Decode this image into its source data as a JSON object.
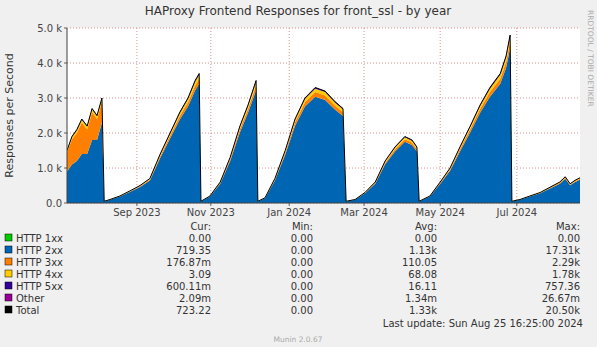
{
  "chart_data": {
    "type": "area",
    "title": "HAProxy Frontend Responses for front_ssl - by year",
    "y_label": "Responses per Second",
    "stacked": true,
    "grid": true,
    "legend": "bottom",
    "xlim": [
      2023.515,
      2024.66
    ],
    "xticks": [
      {
        "value": 2023.671,
        "label": "Sep 2023"
      },
      {
        "value": 2023.836,
        "label": "Nov 2023"
      },
      {
        "value": 2024.011,
        "label": "Jan 2024"
      },
      {
        "value": 2024.178,
        "label": "Mar 2024"
      },
      {
        "value": 2024.348,
        "label": "May 2024"
      },
      {
        "value": 2024.519,
        "label": "Jul 2024"
      }
    ],
    "ylim": [
      0,
      5000
    ],
    "yticks": [
      {
        "value": 0,
        "label": "0.0"
      },
      {
        "value": 1000,
        "label": "1.0 k"
      },
      {
        "value": 2000,
        "label": "2.0 k"
      },
      {
        "value": 3000,
        "label": "3.0 k"
      },
      {
        "value": 4000,
        "label": "4.0 k"
      },
      {
        "value": 5000,
        "label": "5.0 k"
      }
    ],
    "x": [
      2023.515,
      2023.526,
      2023.537,
      2023.548,
      2023.56,
      2023.571,
      2023.582,
      2023.593,
      2023.598,
      2023.611,
      2023.633,
      2023.656,
      2023.678,
      2023.7,
      2023.723,
      2023.745,
      2023.767,
      2023.785,
      2023.801,
      2023.81,
      2023.814,
      2023.834,
      2023.857,
      2023.879,
      2023.901,
      2023.919,
      2023.937,
      2023.941,
      2023.957,
      2023.979,
      2024.002,
      2024.024,
      2024.046,
      2024.069,
      2024.091,
      2024.113,
      2024.131,
      2024.138,
      2024.158,
      2024.18,
      2024.203,
      2024.225,
      2024.247,
      2024.269,
      2024.285,
      2024.296,
      2024.301,
      2024.325,
      2024.348,
      2024.37,
      2024.392,
      2024.415,
      2024.437,
      2024.459,
      2024.482,
      2024.495,
      2024.504,
      2024.508,
      2024.526,
      2024.548,
      2024.571,
      2024.593,
      2024.615,
      2024.627,
      2024.638,
      2024.649,
      2024.66
    ],
    "stat_headers": [
      "Cur:",
      "Min:",
      "Avg:",
      "Max:"
    ],
    "series": [
      {
        "name": "HTTP 1xx",
        "color": "#00cc00",
        "stats": [
          "0.00",
          "0.00",
          "0.00",
          "0.00"
        ],
        "values": [
          0,
          0,
          0,
          0,
          0,
          0,
          0,
          0,
          0,
          0,
          0,
          0,
          0,
          0,
          0,
          0,
          0,
          0,
          0,
          0,
          0,
          0,
          0,
          0,
          0,
          0,
          0,
          0,
          0,
          0,
          0,
          0,
          0,
          0,
          0,
          0,
          0,
          0,
          0,
          0,
          0,
          0,
          0,
          0,
          0,
          0,
          0,
          0,
          0,
          0,
          0,
          0,
          0,
          0,
          0,
          0,
          0,
          0,
          0,
          0,
          0,
          0,
          0,
          0,
          0,
          0,
          0
        ]
      },
      {
        "name": "HTTP 2xx",
        "color": "#0066b3",
        "stats": [
          "719.35",
          "0.00",
          "1.13k",
          "17.31k"
        ],
        "values": [
          900,
          1100,
          1200,
          1400,
          1400,
          1800,
          1800,
          2300,
          40,
          92,
          184,
          322,
          460,
          644,
          1288,
          1840,
          2392,
          2760,
          3220,
          3404,
          40,
          184,
          552,
          1196,
          2024,
          2576,
          3220,
          40,
          138,
          644,
          1380,
          2208,
          2760,
          3036,
          2944,
          2668,
          2484,
          40,
          92,
          276,
          552,
          1104,
          1472,
          1748,
          1656,
          1472,
          40,
          184,
          552,
          920,
          1472,
          2024,
          2576,
          3036,
          3404,
          3864,
          4416,
          40,
          92,
          184,
          276,
          414,
          552,
          690,
          506,
          598,
          662
        ]
      },
      {
        "name": "HTTP 3xx",
        "color": "#ff8000",
        "stats": [
          "176.87m",
          "0.00",
          "110.05",
          "2.29k"
        ],
        "values": [
          550,
          720,
          800,
          900,
          700,
          800,
          600,
          600,
          5,
          4,
          8,
          14,
          20,
          28,
          56,
          80,
          104,
          120,
          140,
          148,
          5,
          8,
          24,
          52,
          88,
          112,
          140,
          5,
          6,
          28,
          60,
          96,
          120,
          132,
          128,
          116,
          108,
          5,
          4,
          12,
          24,
          48,
          64,
          76,
          72,
          64,
          5,
          8,
          24,
          40,
          64,
          88,
          112,
          132,
          148,
          168,
          192,
          5,
          4,
          8,
          12,
          18,
          24,
          30,
          22,
          26,
          29
        ]
      },
      {
        "name": "HTTP 4xx",
        "color": "#ffcc00",
        "stats": [
          "3.09",
          "0.00",
          "68.08",
          "1.78k"
        ],
        "values": [
          40,
          60,
          70,
          80,
          80,
          80,
          80,
          80,
          4,
          3,
          6,
          11,
          15,
          21,
          42,
          60,
          78,
          90,
          105,
          111,
          4,
          6,
          18,
          39,
          66,
          84,
          105,
          4,
          5,
          21,
          45,
          72,
          90,
          99,
          96,
          87,
          81,
          4,
          3,
          9,
          18,
          36,
          48,
          57,
          54,
          48,
          4,
          6,
          18,
          30,
          48,
          66,
          84,
          99,
          111,
          126,
          144,
          4,
          3,
          6,
          9,
          14,
          18,
          23,
          17,
          20,
          22
        ]
      },
      {
        "name": "HTTP 5xx",
        "color": "#330099",
        "stats": [
          "600.11m",
          "0.00",
          "16.11",
          "757.36"
        ],
        "values": [
          10,
          20,
          30,
          20,
          20,
          20,
          20,
          20,
          1,
          1,
          2,
          3,
          5,
          7,
          14,
          20,
          26,
          30,
          35,
          37,
          1,
          2,
          6,
          13,
          22,
          28,
          35,
          1,
          1,
          7,
          15,
          24,
          30,
          33,
          32,
          29,
          27,
          1,
          1,
          3,
          6,
          12,
          16,
          19,
          18,
          16,
          1,
          2,
          6,
          10,
          16,
          22,
          28,
          33,
          37,
          42,
          48,
          1,
          1,
          2,
          3,
          4,
          6,
          7,
          5,
          6,
          7
        ]
      },
      {
        "name": "Other",
        "color": "#990099",
        "stats": [
          "2.09m",
          "0.00",
          "1.34m",
          "26.67m"
        ],
        "values": [
          0,
          0,
          0,
          0,
          0,
          0,
          0,
          0,
          0,
          0,
          0,
          0,
          0,
          0,
          0,
          0,
          0,
          0,
          0,
          0,
          0,
          0,
          0,
          0,
          0,
          0,
          0,
          0,
          0,
          0,
          0,
          0,
          0,
          0,
          0,
          0,
          0,
          0,
          0,
          0,
          0,
          0,
          0,
          0,
          0,
          0,
          0,
          0,
          0,
          0,
          0,
          0,
          0,
          0,
          0,
          0,
          0,
          0,
          0,
          0,
          0,
          0,
          0,
          0,
          0,
          0,
          0
        ]
      },
      {
        "name": "Total",
        "color": "#000000",
        "type": "line",
        "stats": [
          "723.22",
          "0.00",
          "1.33k",
          "20.50k"
        ],
        "values": [
          1500,
          1900,
          2100,
          2400,
          2200,
          2700,
          2500,
          3000,
          50,
          100,
          200,
          350,
          500,
          700,
          1400,
          2000,
          2600,
          3000,
          3500,
          3700,
          50,
          200,
          600,
          1300,
          2200,
          2800,
          3500,
          50,
          150,
          700,
          1500,
          2400,
          3000,
          3300,
          3200,
          2900,
          2700,
          50,
          100,
          300,
          600,
          1200,
          1600,
          1900,
          1800,
          1600,
          50,
          200,
          600,
          1000,
          1600,
          2200,
          2800,
          3300,
          3700,
          4200,
          4800,
          50,
          100,
          200,
          300,
          450,
          600,
          750,
          550,
          650,
          720
        ]
      }
    ],
    "last_update": "Last update: Sun Aug 25 16:25:00 2024",
    "footer": "Munin 2.0.67",
    "watermark": "RRDTOOL / TOBI OETIKER"
  }
}
